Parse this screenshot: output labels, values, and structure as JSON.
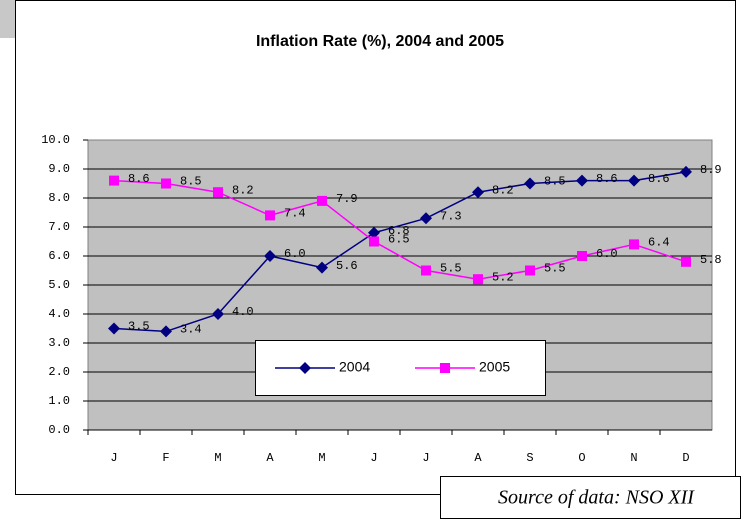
{
  "chart_data": {
    "type": "line",
    "title": "Inflation Rate (%), 2004 and 2005",
    "categories": [
      "J",
      "F",
      "M",
      "A",
      "M",
      "J",
      "J",
      "A",
      "S",
      "O",
      "N",
      "D"
    ],
    "series": [
      {
        "name": "2004",
        "color": "#000080",
        "marker": "diamond",
        "values": [
          3.5,
          3.4,
          4.0,
          6.0,
          5.6,
          6.8,
          7.3,
          8.2,
          8.5,
          8.6,
          8.6,
          8.9
        ],
        "value_labels": [
          "3.5",
          "3.4",
          "4.0",
          "6.0",
          "5.6",
          "6.8",
          "7.3",
          "8.2",
          "8.5",
          "8.6",
          "8.6",
          "8.9"
        ]
      },
      {
        "name": "2005",
        "color": "#ff00ff",
        "marker": "square",
        "values": [
          8.6,
          8.5,
          8.2,
          7.4,
          7.9,
          6.5,
          5.5,
          5.2,
          5.5,
          6.0,
          6.4,
          5.8
        ],
        "value_labels": [
          "8.6",
          "8.5",
          "8.2",
          "7.4",
          "7.9",
          "6.5",
          "5.5",
          "5.2",
          "5.5",
          "6.0",
          "6.4",
          "5.8"
        ]
      }
    ],
    "ylim": [
      0,
      10
    ],
    "yticks": [
      {
        "value": 0,
        "label": "0.0"
      },
      {
        "value": 1,
        "label": "1.0"
      },
      {
        "value": 2,
        "label": "2.0"
      },
      {
        "value": 3,
        "label": "3.0"
      },
      {
        "value": 4,
        "label": "4.0"
      },
      {
        "value": 5,
        "label": "5.0"
      },
      {
        "value": 6,
        "label": "6.0"
      },
      {
        "value": 7,
        "label": "7.0"
      },
      {
        "value": 8,
        "label": "8.0"
      },
      {
        "value": 9,
        "label": "9.0"
      },
      {
        "value": 10,
        "label": "10.0"
      }
    ],
    "grid": true,
    "plot_background": "#c0c0c0",
    "legend": "bottom",
    "source": "Source of data: NSO XII"
  }
}
